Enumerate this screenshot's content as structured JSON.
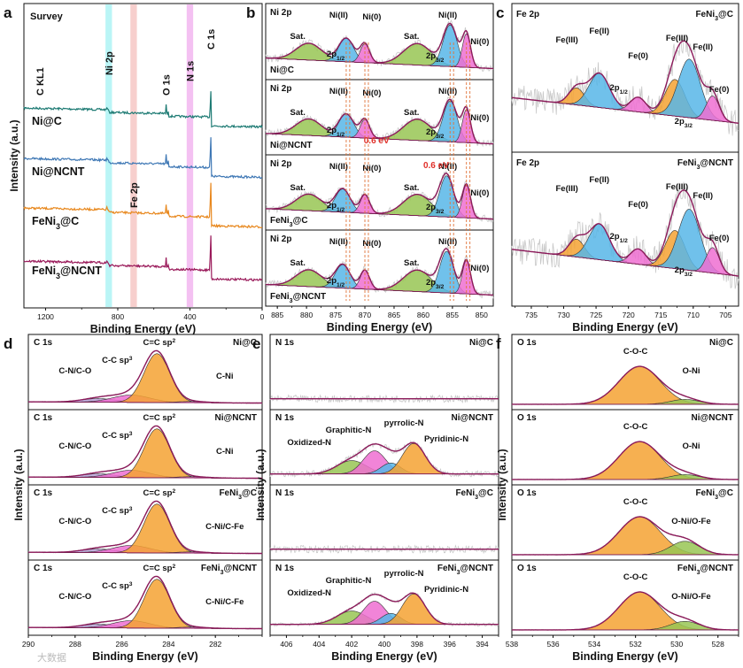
{
  "chart_data": [
    {
      "panel": "a",
      "type": "line",
      "label": "Survey",
      "xlabel": "Binding Energy (eV)",
      "ylabel": "Intensity (a.u.)",
      "xlim": [
        1320,
        0
      ],
      "xticks": [
        1200,
        800,
        400,
        0
      ],
      "peak_labels": [
        "C KL1",
        "Ni 2p",
        "O 1s",
        "N 1s",
        "C 1s",
        "Fe 2p"
      ],
      "bands": [
        {
          "center": 850,
          "color": "#aef3f5"
        },
        {
          "center": 712,
          "color": "#f6c7c4"
        },
        {
          "center": 400,
          "color": "#f2b6f0"
        }
      ],
      "series": [
        {
          "name": "Ni@C",
          "color": "#1e7b74"
        },
        {
          "name": "Ni@NCNT",
          "color": "#3f78b5"
        },
        {
          "name": "FeNi3@C",
          "color": "#e8881e"
        },
        {
          "name": "FeNi3@NCNT",
          "color": "#9a1a5a"
        }
      ]
    },
    {
      "panel": "b",
      "type": "area",
      "label": "Ni 2p",
      "xlabel": "Binding Energy (eV)",
      "xlim": [
        887,
        848
      ],
      "xticks": [
        885,
        880,
        875,
        870,
        865,
        860,
        855,
        850
      ],
      "sample_labels": [
        "Ni@C",
        "Ni@NCNT",
        "FeNi3@C",
        "FeNi3@NCNT"
      ],
      "peak_labels": [
        "Ni(II)",
        "Ni(0)",
        "Sat.",
        "2p1/2",
        "2p3/2"
      ],
      "shift_label": "0.6 eV"
    },
    {
      "panel": "c",
      "type": "area",
      "label": "Fe 2p",
      "xlabel": "Binding Energy (eV)",
      "xlim": [
        738,
        703
      ],
      "xticks": [
        735,
        730,
        725,
        720,
        715,
        710,
        705
      ],
      "sample_labels": [
        "FeNi3@C",
        "FeNi3@NCNT"
      ],
      "peak_labels": [
        "Fe(III)",
        "Fe(II)",
        "Fe(0)",
        "2p1/2",
        "2p3/2"
      ]
    },
    {
      "panel": "d",
      "type": "area",
      "label": "C 1s",
      "xlabel": "Binding Energy (eV)",
      "ylabel": "Intensity (a.u.)",
      "xlim": [
        290,
        280
      ],
      "xticks": [
        290,
        288,
        286,
        284,
        282
      ],
      "sample_labels": [
        "Ni@C",
        "Ni@NCNT",
        "FeNi3@C",
        "FeNi3@NCNT"
      ],
      "peak_labels": [
        "C=C sp2",
        "C-C sp3",
        "C-N/C-O",
        "C-Ni",
        "C-Ni/C-Fe"
      ]
    },
    {
      "panel": "e",
      "type": "area",
      "label": "N 1s",
      "xlabel": "Binding Energy (eV)",
      "ylabel": "Intensity (a.u.)",
      "xlim": [
        407,
        393
      ],
      "xticks": [
        406,
        404,
        402,
        400,
        398,
        396,
        394
      ],
      "sample_labels": [
        "Ni@C",
        "Ni@NCNT",
        "FeNi3@C",
        "FeNi3@NCNT"
      ],
      "peak_labels": [
        "Oxidized-N",
        "Graphitic-N",
        "pyrrolic-N",
        "Pyridinic-N"
      ]
    },
    {
      "panel": "f",
      "type": "area",
      "label": "O 1s",
      "xlabel": "Binding Energy (eV)",
      "ylabel": "Intensity (a.u.)",
      "xlim": [
        538,
        527
      ],
      "xticks": [
        538,
        536,
        534,
        532,
        530,
        528
      ],
      "sample_labels": [
        "Ni@C",
        "Ni@NCNT",
        "FeNi3@C",
        "FeNi3@NCNT"
      ],
      "peak_labels": [
        "C-O-C",
        "O-Ni",
        "O-Ni/O-Fe"
      ]
    }
  ],
  "panel_letters": [
    "a",
    "b",
    "c",
    "d",
    "e",
    "f"
  ],
  "watermark": "大数据"
}
